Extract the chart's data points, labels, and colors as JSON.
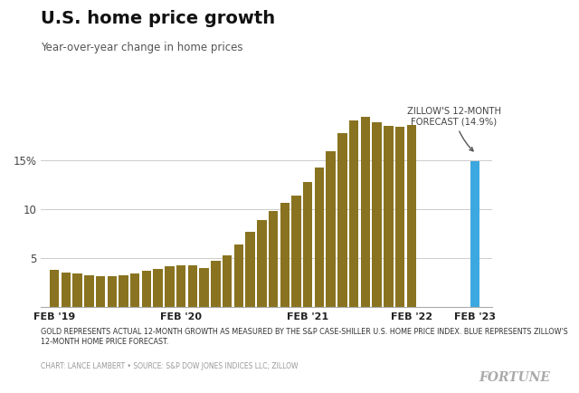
{
  "title": "U.S. home price growth",
  "subtitle": "Year-over-year change in home prices",
  "gold_color": "#897320",
  "blue_color": "#3DA8E0",
  "background_color": "#ffffff",
  "ylim": [
    0,
    21
  ],
  "yticks": [
    5,
    10,
    15
  ],
  "ytick_labels": [
    "5",
    "10",
    "15%"
  ],
  "xlabel_ticks": [
    "FEB '19",
    "FEB '20",
    "FEB '21",
    "FEB '22",
    "FEB '23"
  ],
  "forecast_value": 14.9,
  "annotation_text": "ZILLOW'S 12-MONTH\nFORECAST (14.9%)",
  "footnote_bold": "GOLD REPRESENTS ACTUAL 12-MONTH GROWTH AS MEASURED BY THE S&P CASE-SHILLER U.S. HOME PRICE INDEX. BLUE REPRESENTS ZILLOW'S 12-MONTH HOME PRICE FORECAST.",
  "footnote_light": "CHART: LANCE LAMBERT • SOURCE: S&P DOW JONES INDICES LLC; ZILLOW",
  "fortune_text": "FORTUNE",
  "values": [
    3.8,
    3.5,
    3.4,
    3.2,
    3.1,
    3.1,
    3.2,
    3.4,
    3.7,
    3.9,
    4.1,
    4.2,
    4.2,
    4.0,
    4.7,
    5.3,
    6.4,
    7.7,
    8.9,
    9.8,
    10.7,
    11.4,
    12.8,
    14.3,
    16.0,
    17.8,
    19.1,
    19.5,
    18.9,
    18.6,
    18.5,
    18.7
  ],
  "feb19_idx": 0,
  "feb20_idx": 11,
  "feb21_idx": 22,
  "feb22_idx": 31
}
